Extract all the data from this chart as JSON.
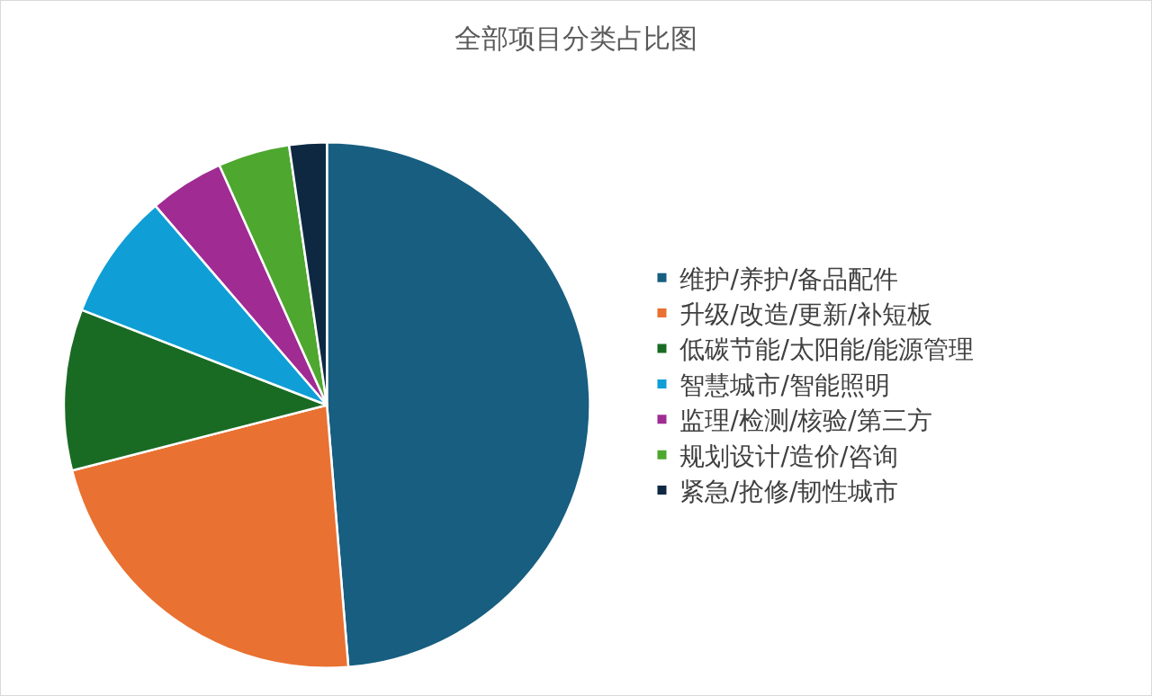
{
  "chart_data": {
    "type": "pie",
    "title": "全部项目分类占比图",
    "categories": [
      "维护/养护/备品配件",
      "升级/改造/更新/补短板",
      "低碳节能/太阳能/能源管理",
      "智慧城市/智能照明",
      "监理/检测/核验/第三方",
      "规划设计/造价/咨询",
      "紧急/抢修/韧性城市"
    ],
    "values": [
      48.7,
      22.3,
      9.9,
      7.8,
      4.6,
      4.4,
      2.3
    ],
    "colors": [
      "#175e80",
      "#e97132",
      "#196b24",
      "#0f9ed5",
      "#a02b93",
      "#4ea72e",
      "#0e2841"
    ],
    "legend": "right"
  }
}
